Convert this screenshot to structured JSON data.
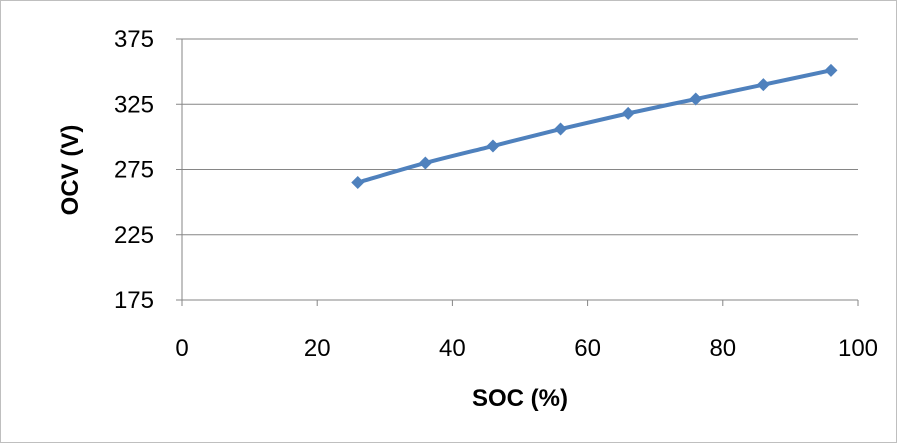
{
  "chart_data": {
    "type": "scatter",
    "title": "",
    "xlabel": "SOC (%)",
    "ylabel": "OCV (V)",
    "xlim": [
      0,
      100
    ],
    "ylim": [
      175,
      375
    ],
    "xticks": [
      "0",
      "20",
      "40",
      "60",
      "80",
      "100"
    ],
    "yticks": [
      "175",
      "225",
      "275",
      "325",
      "375"
    ],
    "grid": "horizontal",
    "legend": "none",
    "series": [
      {
        "color": "#4f81bd",
        "marker": "diamond",
        "line": "smooth",
        "x": [
          26,
          36,
          46,
          56,
          66,
          76,
          86,
          96
        ],
        "y": [
          265,
          280,
          293,
          306,
          318,
          329,
          340,
          351
        ]
      }
    ]
  }
}
